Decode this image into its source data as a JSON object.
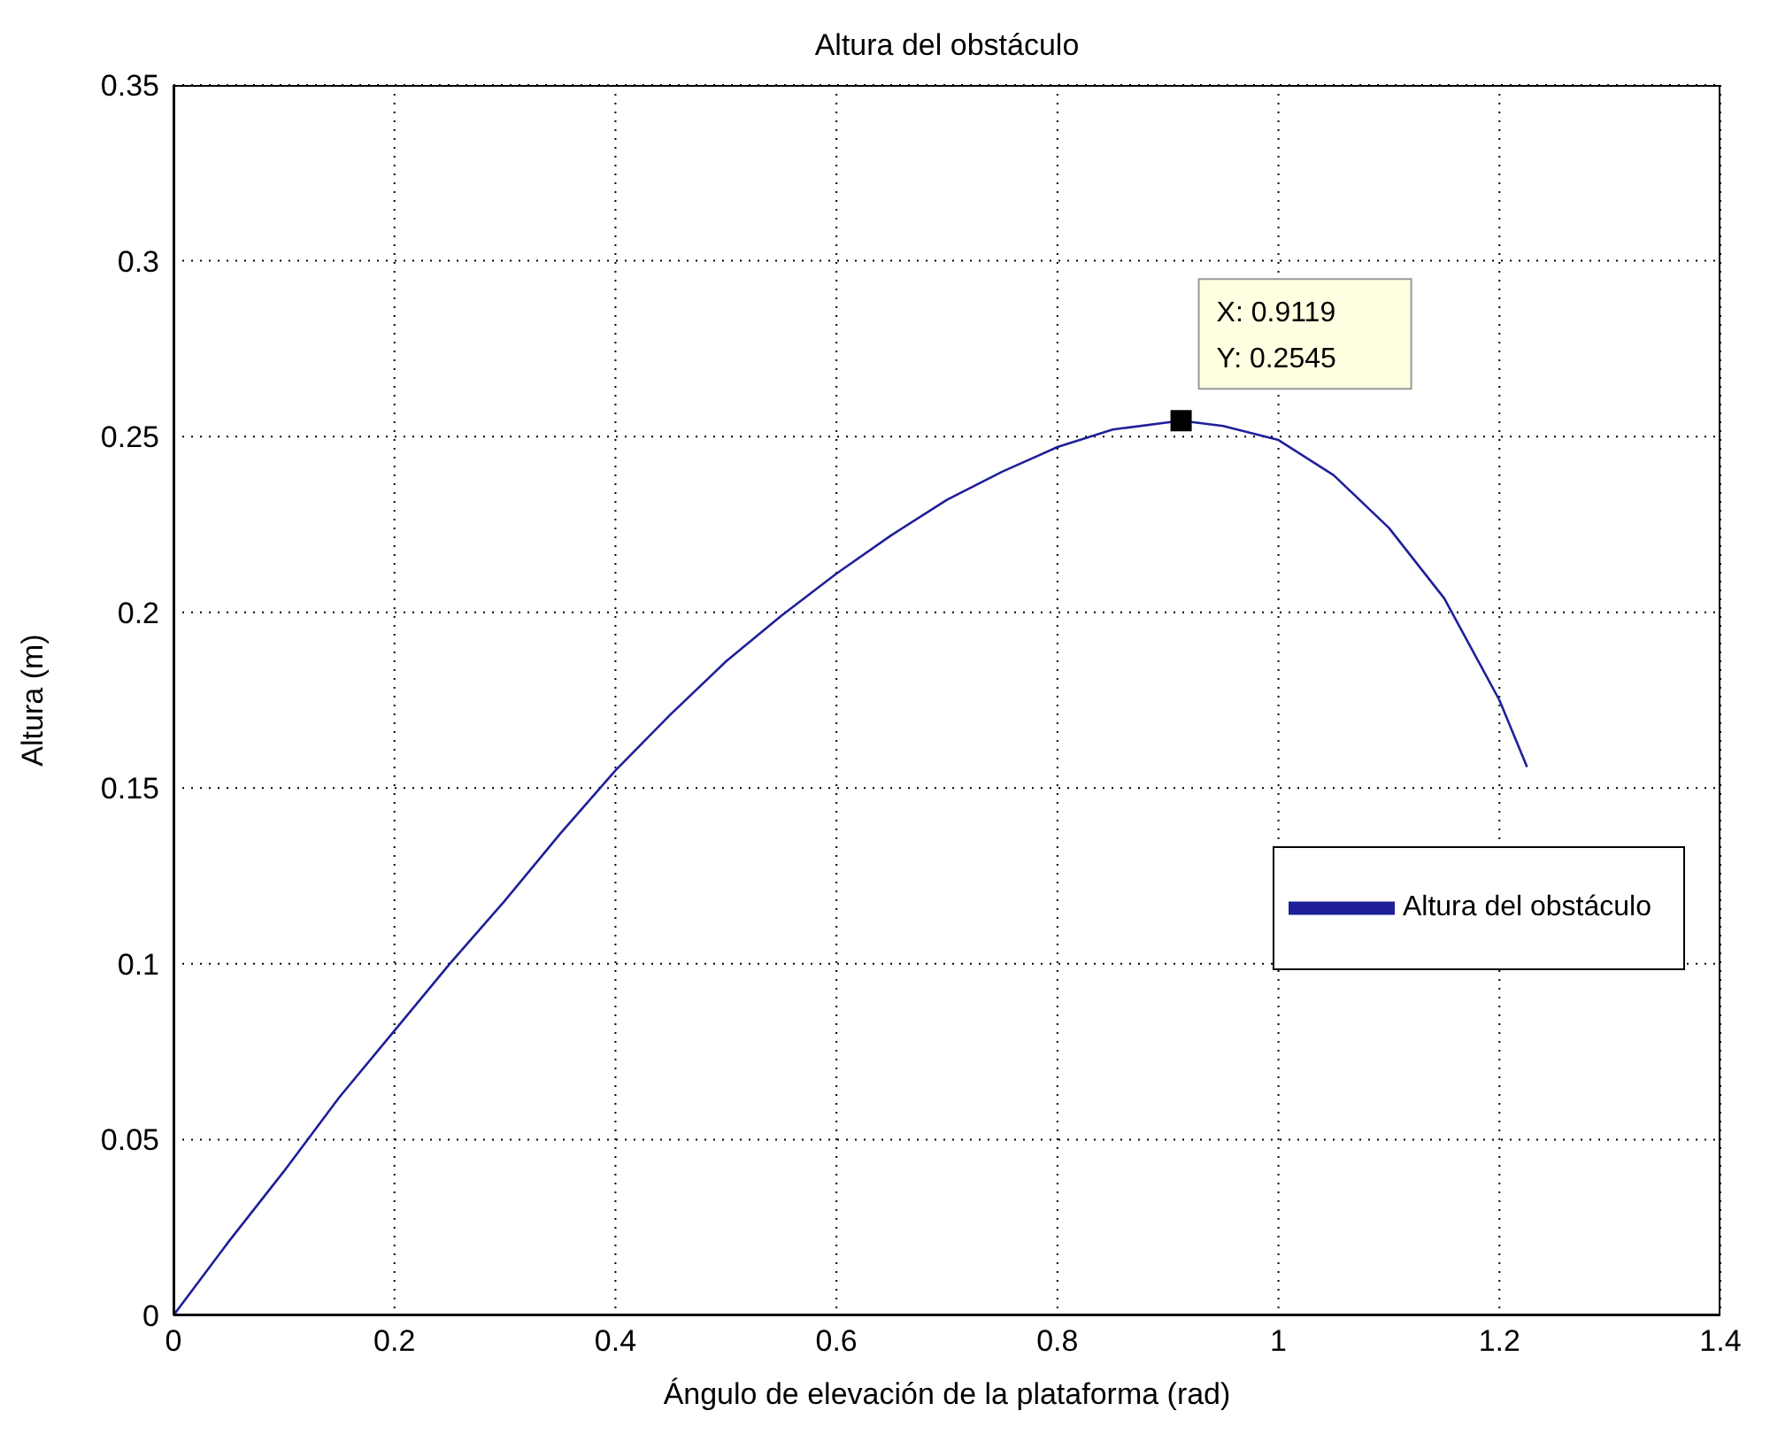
{
  "chart_data": {
    "type": "line",
    "title": "Altura del obstáculo",
    "xlabel": "Ángulo de elevación de la plataforma (rad)",
    "ylabel": "Altura (m)",
    "xlim": [
      0,
      1.4
    ],
    "xticks": [
      0,
      0.2,
      0.4,
      0.6,
      0.8,
      1,
      1.2,
      1.4
    ],
    "ylim": [
      0,
      0.35
    ],
    "yticks": [
      0,
      0.05,
      0.1,
      0.15,
      0.2,
      0.25,
      0.3,
      0.35
    ],
    "grid": true,
    "legend": "right",
    "line_style": "solid",
    "marker": "none",
    "annotations": [
      {
        "text": "X: 0.9119\nY: 0.2545",
        "x": 0.9119,
        "y": 0.2545
      }
    ],
    "series": [
      {
        "name": "Altura del obstáculo",
        "color": "#1f1f9a",
        "x": [
          0,
          0.05,
          0.1,
          0.15,
          0.2,
          0.25,
          0.3,
          0.35,
          0.4,
          0.45,
          0.5,
          0.55,
          0.6,
          0.65,
          0.7,
          0.75,
          0.8,
          0.85,
          0.9119,
          0.95,
          1.0,
          1.05,
          1.1,
          1.15,
          1.2,
          1.225
        ],
        "values": [
          0,
          0.021,
          0.041,
          0.062,
          0.081,
          0.1,
          0.118,
          0.137,
          0.155,
          0.171,
          0.186,
          0.199,
          0.211,
          0.222,
          0.232,
          0.24,
          0.247,
          0.252,
          0.2545,
          0.253,
          0.249,
          0.239,
          0.224,
          0.204,
          0.175,
          0.156
        ]
      }
    ]
  }
}
